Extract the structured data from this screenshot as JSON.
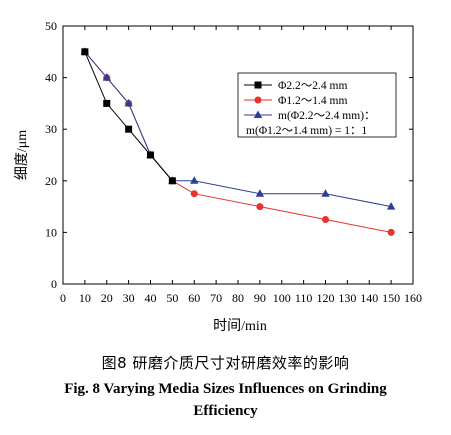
{
  "chart_data": {
    "type": "line",
    "xlabel": "时间/min",
    "ylabel": "细度/μm",
    "xlim": [
      0,
      160
    ],
    "ylim": [
      0,
      50
    ],
    "x_ticks": [
      0,
      10,
      20,
      30,
      40,
      50,
      60,
      70,
      80,
      90,
      100,
      110,
      120,
      130,
      140,
      150,
      160
    ],
    "y_ticks": [
      0,
      10,
      20,
      30,
      40,
      50
    ],
    "grid": false,
    "legend_position": "top-right",
    "series": [
      {
        "name": "Φ2.2～2.4 mm",
        "color": "#000000",
        "marker": "square",
        "x": [
          10,
          20,
          30,
          40,
          50
        ],
        "y": [
          45,
          35,
          30,
          25,
          20
        ]
      },
      {
        "name": "Φ1.2～1.4 mm",
        "color": "#e8322b",
        "marker": "circle",
        "x": [
          10,
          20,
          30,
          40,
          50,
          60,
          90,
          120,
          150
        ],
        "y": [
          45,
          40,
          35,
          25,
          20,
          17.5,
          15,
          12.5,
          10
        ]
      },
      {
        "name": "m(Φ2.2～2.4 mm)：m(Φ1.2～1.4 mm) = 1：1",
        "name_lines": [
          "m(Φ2.2～2.4 mm)：",
          "m(Φ1.2～1.4 mm) = 1：1"
        ],
        "color": "#2b3f95",
        "marker": "triangle",
        "x": [
          10,
          20,
          30,
          40,
          50,
          60,
          90,
          120,
          150
        ],
        "y": [
          45,
          40,
          35,
          25,
          20,
          20,
          17.5,
          17.5,
          15
        ]
      }
    ]
  },
  "caption": {
    "cn": "图8   研磨介质尺寸对研磨效率的影响",
    "en_line1": "Fig. 8   Varying Media Sizes Influences on Grinding",
    "en_line2": "Efficiency"
  }
}
